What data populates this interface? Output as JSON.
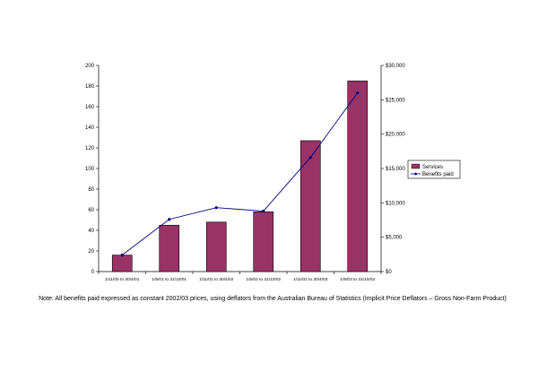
{
  "chart_data": {
    "type": "bar",
    "title": "",
    "xlabel": "",
    "ylabel": "",
    "ylim": [
      0,
      200
    ],
    "y2lim": [
      0,
      30000
    ],
    "yticks": [
      0,
      20,
      40,
      60,
      80,
      100,
      120,
      140,
      160,
      180,
      200
    ],
    "y2ticks": [
      0,
      5000,
      10000,
      15000,
      20000,
      25000,
      30000
    ],
    "y2ticklabels": [
      "$0",
      "$5,000",
      "$10,000",
      "$15,000",
      "$20,000",
      "$25,000",
      "$30,000"
    ],
    "legend_position": "right",
    "grid": false,
    "categories": [
      "1/11/00 to 30/4/01",
      "1/5/01 to 31/10/01",
      "1/11/01 to 30/4/02",
      "1/5/02 to 31/10/02",
      "1/11/02 to 30/4/03",
      "1/5/03 to 31/10/03"
    ],
    "series": [
      {
        "name": "Services",
        "type": "bar",
        "axis": "left",
        "color": "#993366",
        "values": [
          16,
          45,
          48,
          58,
          127,
          185
        ]
      },
      {
        "name": "Benefits paid",
        "type": "line",
        "axis": "right",
        "color": "#000080",
        "values": [
          2400,
          7600,
          9300,
          8800,
          16600,
          26000
        ]
      }
    ]
  },
  "note": "Note: All benefits paid expressed as constant 2002/03 prices, using deflators from the Australian Bureau of Statistics (Implicit Price Deflators – Gross Non-Farm Product)"
}
